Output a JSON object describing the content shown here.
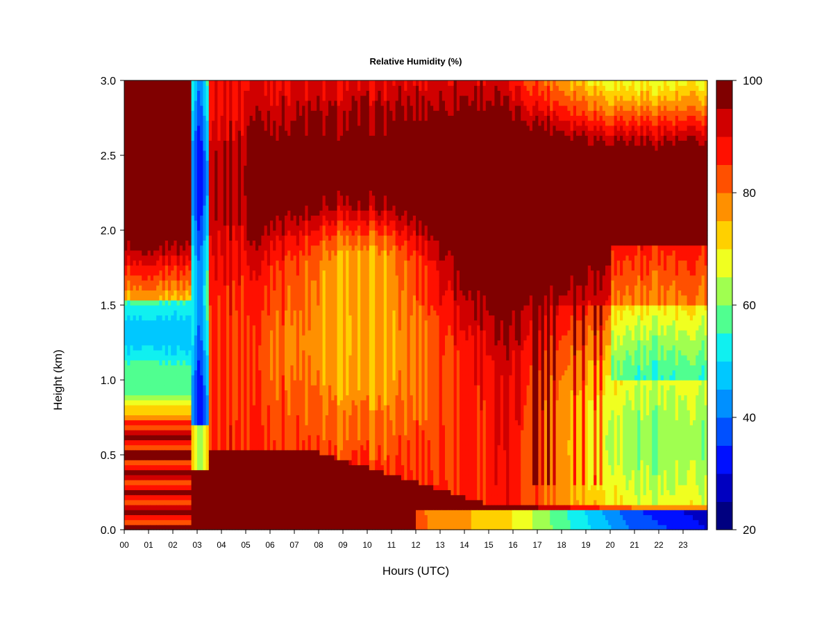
{
  "chart_data": {
    "type": "heatmap",
    "title": "Relative Humidity (%)",
    "xlabel": "Hours (UTC)",
    "ylabel": "Height (km)",
    "x_range": [
      0,
      24
    ],
    "ylim": [
      0.0,
      3.0
    ],
    "x_tick_labels": [
      "00",
      "01",
      "02",
      "03",
      "04",
      "05",
      "06",
      "07",
      "08",
      "09",
      "10",
      "11",
      "12",
      "13",
      "14",
      "15",
      "16",
      "17",
      "18",
      "19",
      "20",
      "21",
      "22",
      "23"
    ],
    "y_tick_labels": [
      "0.0",
      "0.5",
      "1.0",
      "1.5",
      "2.0",
      "2.5",
      "3.0"
    ],
    "colorbar": {
      "range": [
        20,
        100
      ],
      "levels": [
        20,
        25,
        30,
        35,
        40,
        45,
        50,
        55,
        60,
        65,
        70,
        75,
        80,
        85,
        90,
        95,
        100
      ],
      "tick_values": [
        20,
        40,
        60,
        80,
        100
      ],
      "tick_labels": [
        "20",
        "40",
        "60",
        "80",
        "100"
      ],
      "colors": [
        "#000080",
        "#0000c0",
        "#0010ff",
        "#0050ff",
        "#0090ff",
        "#00c8ff",
        "#10f0f0",
        "#50ff90",
        "#a0ff50",
        "#f0ff20",
        "#ffd000",
        "#ff9000",
        "#ff5000",
        "#ff1000",
        "#d00000",
        "#800000"
      ]
    },
    "grid": false,
    "legend": "colorbar-right"
  }
}
